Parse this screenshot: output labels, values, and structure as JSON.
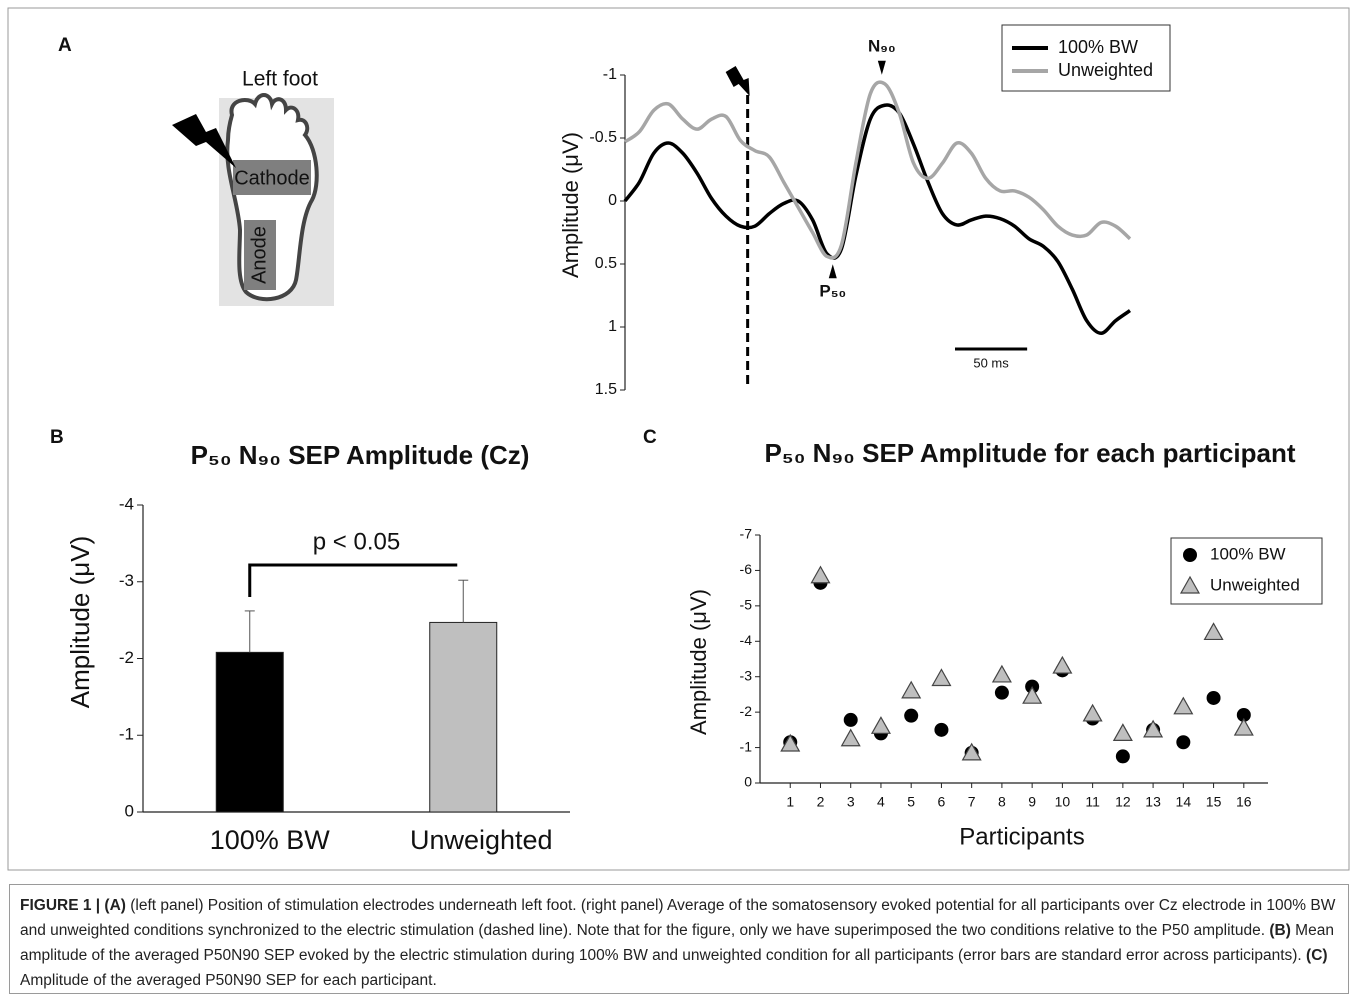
{
  "panel_labels": [
    "A",
    "B",
    "C"
  ],
  "foot_diagram": {
    "title": "Left foot",
    "electrodes": [
      "Cathode",
      "Anode"
    ]
  },
  "chart_data": [
    {
      "type": "line",
      "y_label": "Amplitude (μV)",
      "x": [
        -85,
        -75,
        -65,
        -55,
        -45,
        -35,
        -25,
        -15,
        -5,
        5,
        15,
        25,
        35,
        45,
        55,
        65,
        75,
        85,
        95,
        105,
        115,
        125,
        135,
        145,
        155,
        165,
        175,
        185,
        195,
        205,
        215,
        225,
        235,
        245,
        255,
        265
      ],
      "xlim": [
        -85,
        265
      ],
      "ylim": [
        -1,
        1.5
      ],
      "yticks": [
        -1,
        -0.5,
        0,
        0.5,
        1,
        1.5
      ],
      "inverted": true,
      "series": [
        {
          "name": "100% BW",
          "color": "#000000",
          "values": [
            0.0,
            -0.15,
            -0.38,
            -0.46,
            -0.38,
            -0.22,
            -0.02,
            0.12,
            0.2,
            0.2,
            0.1,
            0.02,
            0.0,
            0.15,
            0.42,
            0.38,
            -0.2,
            -0.65,
            -0.76,
            -0.7,
            -0.45,
            -0.15,
            0.1,
            0.19,
            0.15,
            0.12,
            0.14,
            0.2,
            0.3,
            0.36,
            0.48,
            0.7,
            0.95,
            1.05,
            0.95,
            0.87
          ]
        },
        {
          "name": "Unweighted",
          "color": "#a6a6a6",
          "values": [
            -0.47,
            -0.55,
            -0.72,
            -0.77,
            -0.65,
            -0.57,
            -0.65,
            -0.67,
            -0.48,
            -0.4,
            -0.35,
            -0.15,
            0.05,
            0.25,
            0.44,
            0.35,
            -0.3,
            -0.85,
            -0.93,
            -0.7,
            -0.3,
            -0.18,
            -0.3,
            -0.46,
            -0.38,
            -0.18,
            -0.08,
            -0.08,
            -0.03,
            0.07,
            0.2,
            0.27,
            0.27,
            0.17,
            0.2,
            0.3
          ]
        }
      ],
      "stimulus": {
        "x": 0
      },
      "annotations": [
        {
          "text": "N₉₀",
          "x": 93,
          "y": -0.97,
          "side": "above"
        },
        {
          "text": "P₅₀",
          "x": 59,
          "y": 0.47,
          "side": "below"
        }
      ],
      "scale_bar": {
        "label": "50 ms",
        "length": 50
      },
      "legend": "upper right"
    },
    {
      "type": "bar",
      "title": "P₅₀ N₉₀  SEP Amplitude (Cz)",
      "y_label": "Amplitude (μV)",
      "categories": [
        "100% BW",
        "Unweighted"
      ],
      "values": [
        -2.08,
        -2.47
      ],
      "errors": [
        0.54,
        0.55
      ],
      "colors": [
        "#000000",
        "#bfbfbf"
      ],
      "ylim": [
        -4,
        0
      ],
      "yticks": [
        -4,
        -3,
        -2,
        -1,
        0
      ],
      "inverted": true,
      "significance": {
        "label": "p < 0.05",
        "between": [
          0,
          1
        ]
      }
    },
    {
      "type": "scatter",
      "title": "P₅₀ N₉₀  SEP Amplitude for each participant",
      "x_label": "Participants",
      "y_label": "Amplitude (μV)",
      "x": [
        1,
        2,
        3,
        4,
        5,
        6,
        7,
        8,
        9,
        10,
        11,
        12,
        13,
        14,
        15,
        16
      ],
      "xlim": [
        0,
        16.8
      ],
      "xticks": [
        1,
        2,
        3,
        4,
        5,
        6,
        7,
        8,
        9,
        10,
        11,
        12,
        13,
        14,
        15,
        16
      ],
      "ylim": [
        -7,
        0
      ],
      "yticks": [
        -7,
        -6,
        -5,
        -4,
        -3,
        -2,
        -1,
        0
      ],
      "inverted": true,
      "series": [
        {
          "name": "100% BW",
          "color": "#000000",
          "marker": "circle",
          "values": [
            -1.15,
            -5.65,
            -1.78,
            -1.4,
            -1.9,
            -1.5,
            -0.85,
            -2.55,
            -2.72,
            -3.18,
            -1.82,
            -0.75,
            -1.5,
            -1.15,
            -2.4,
            -1.92
          ]
        },
        {
          "name": "Unweighted",
          "color": "#bfbfbf",
          "marker": "triangle",
          "values": [
            -1.1,
            -5.85,
            -1.25,
            -1.6,
            -2.6,
            -2.95,
            -0.85,
            -3.05,
            -2.45,
            -3.3,
            -1.95,
            -1.4,
            -1.5,
            -2.15,
            -4.25,
            -1.55
          ]
        }
      ],
      "legend": "upper right"
    }
  ],
  "caption": {
    "segments": [
      {
        "bold": true,
        "text": "FIGURE 1 | (A)"
      },
      {
        "bold": false,
        "text": " (left panel) Position of stimulation electrodes underneath left foot. (right panel) Average of the somatosensory evoked potential for all participants over Cz electrode in 100% BW and unweighted conditions synchronized to the electric stimulation (dashed line). Note that for the figure, only we have superimposed the two conditions relative to the P50 amplitude. "
      },
      {
        "bold": true,
        "text": "(B)"
      },
      {
        "bold": false,
        "text": " Mean amplitude of the averaged P50N90 SEP evoked by the electric stimulation during 100% BW and unweighted condition for all participants (error bars are standard error across participants). "
      },
      {
        "bold": true,
        "text": "(C)"
      },
      {
        "bold": false,
        "text": " Amplitude of the averaged P50N90 SEP for each participant."
      }
    ]
  }
}
